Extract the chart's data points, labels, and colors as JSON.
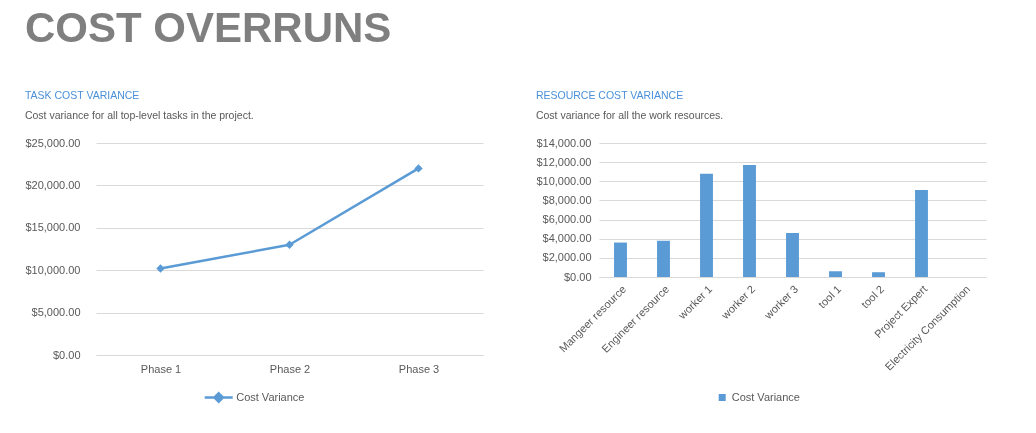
{
  "chart_data": [
    {
      "type": "line",
      "title": "TASK COST VARIANCE",
      "subtitle": "Cost variance for all top-level tasks in the project.",
      "annotations": [
        "COST OVERRUNS"
      ],
      "categories": [
        "Phase 1",
        "Phase 2",
        "Phase 3"
      ],
      "series": [
        {
          "name": "Cost Variance",
          "color": "#5b9bd5",
          "values": [
            10200,
            13000,
            22000
          ]
        }
      ],
      "ylim": [
        0,
        25000
      ],
      "yticks": [
        {
          "value": 0,
          "label": "$0.00"
        },
        {
          "value": 5000,
          "label": "$5,000.00"
        },
        {
          "value": 10000,
          "label": "$10,000.00"
        },
        {
          "value": 15000,
          "label": "$15,000.00"
        },
        {
          "value": 20000,
          "label": "$20,000.00"
        },
        {
          "value": 25000,
          "label": "$25,000.00"
        }
      ],
      "grid": "y",
      "legend": "bottom",
      "marker": "diamond",
      "line_style": "solid"
    },
    {
      "type": "bar",
      "title": "RESOURCE COST VARIANCE",
      "subtitle": "Cost variance for all the work resources.",
      "categories": [
        "Mangeer resource",
        "Engineer resource",
        "worker 1",
        "worker 2",
        "worker 3",
        "tool 1",
        "tool 2",
        "Project Expert",
        "Electricity Consumption"
      ],
      "series": [
        {
          "name": "Cost Variance",
          "color": "#5b9bd5",
          "values": [
            3600,
            3800,
            10800,
            11700,
            4600,
            600,
            500,
            9100,
            0
          ]
        }
      ],
      "ylim": [
        0,
        14000
      ],
      "yticks": [
        {
          "value": 0,
          "label": "$0.00"
        },
        {
          "value": 2000,
          "label": "$2,000.00"
        },
        {
          "value": 4000,
          "label": "$4,000.00"
        },
        {
          "value": 6000,
          "label": "$6,000.00"
        },
        {
          "value": 8000,
          "label": "$8,000.00"
        },
        {
          "value": 10000,
          "label": "$10,000.00"
        },
        {
          "value": 12000,
          "label": "$12,000.00"
        },
        {
          "value": 14000,
          "label": "$14,000.00"
        }
      ],
      "grid": "y",
      "legend": "bottom"
    }
  ]
}
